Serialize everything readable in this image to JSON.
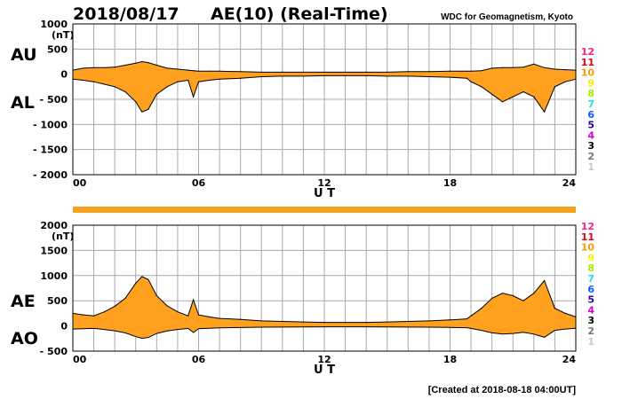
{
  "header": {
    "date": "2018/08/17",
    "title": "AE(10) (Real-Time)",
    "source": "WDC for Geomagnetism, Kyoto"
  },
  "footer": {
    "created": "[Created at 2018-08-18 04:00UT]"
  },
  "colors": {
    "fill": "#ffa01e",
    "line": "#000000",
    "grid": "#aaaaaa",
    "bar": "#f7a21e"
  },
  "station_counts": [
    {
      "label": "12",
      "color": "#ff1f80"
    },
    {
      "label": "11",
      "color": "#e0001b"
    },
    {
      "label": "10",
      "color": "#ff9a00"
    },
    {
      "label": "9",
      "color": "#f7ef00"
    },
    {
      "label": "8",
      "color": "#9ef000"
    },
    {
      "label": "7",
      "color": "#1fe0f0"
    },
    {
      "label": "6",
      "color": "#0a5cff"
    },
    {
      "label": "5",
      "color": "#2a00b0"
    },
    {
      "label": "4",
      "color": "#d000d8"
    },
    {
      "label": "3",
      "color": "#000000"
    },
    {
      "label": "2",
      "color": "#777777"
    },
    {
      "label": "1",
      "color": "#c8c8c8"
    }
  ],
  "chart_data": [
    {
      "type": "area",
      "name": "AU/AL",
      "unit": "(nT)",
      "upper_label": "AU",
      "lower_label": "AL",
      "xlabel": "U T",
      "xlim": [
        0,
        24
      ],
      "x_ticks": [
        "00",
        "06",
        "12",
        "18",
        "24"
      ],
      "ylim": [
        -2000,
        1000
      ],
      "y_ticks": [
        "1000",
        "500",
        "0",
        "- 500",
        "- 1000",
        "- 1500",
        "- 2000"
      ],
      "grid": true,
      "x": [
        0,
        0.5,
        1,
        1.5,
        2,
        2.5,
        3,
        3.3,
        3.6,
        4,
        4.5,
        5,
        5.5,
        5.75,
        6,
        6.5,
        7,
        8,
        9,
        10,
        11,
        12,
        13,
        14,
        15,
        16,
        17,
        18,
        18.8,
        19,
        19.5,
        20,
        20.5,
        21,
        21.5,
        22,
        22.5,
        23,
        23.5,
        24
      ],
      "upper": [
        80,
        120,
        130,
        130,
        140,
        180,
        220,
        250,
        230,
        180,
        120,
        100,
        80,
        70,
        60,
        60,
        60,
        50,
        40,
        40,
        40,
        40,
        40,
        40,
        40,
        50,
        50,
        60,
        60,
        60,
        70,
        120,
        130,
        130,
        140,
        200,
        130,
        100,
        90,
        80
      ],
      "lower": [
        -100,
        -120,
        -150,
        -200,
        -250,
        -350,
        -550,
        -750,
        -700,
        -400,
        -250,
        -150,
        -120,
        -450,
        -150,
        -120,
        -100,
        -80,
        -50,
        -40,
        -40,
        -30,
        -30,
        -30,
        -40,
        -40,
        -50,
        -60,
        -80,
        -150,
        -250,
        -400,
        -550,
        -450,
        -350,
        -450,
        -750,
        -250,
        -150,
        -100
      ]
    },
    {
      "type": "area",
      "name": "AE/AO",
      "unit": "(nT)",
      "upper_label": "AE",
      "lower_label": "AO",
      "xlabel": "U T",
      "xlim": [
        0,
        24
      ],
      "x_ticks": [
        "00",
        "06",
        "12",
        "18",
        "24"
      ],
      "ylim": [
        -500,
        2000
      ],
      "y_ticks": [
        "2000",
        "1500",
        "1000",
        "500",
        "0",
        "- 500"
      ],
      "grid": true,
      "x": [
        0,
        0.5,
        1,
        1.5,
        2,
        2.5,
        3,
        3.3,
        3.6,
        4,
        4.5,
        5,
        5.5,
        5.75,
        6,
        6.5,
        7,
        8,
        9,
        10,
        11,
        12,
        13,
        14,
        15,
        16,
        17,
        18,
        18.8,
        19,
        19.5,
        20,
        20.5,
        21,
        21.5,
        22,
        22.5,
        23,
        23.5,
        24
      ],
      "upper": [
        250,
        220,
        200,
        280,
        390,
        550,
        850,
        980,
        920,
        600,
        400,
        280,
        200,
        520,
        220,
        180,
        150,
        130,
        100,
        90,
        80,
        70,
        70,
        70,
        80,
        90,
        100,
        120,
        140,
        200,
        350,
        550,
        650,
        600,
        500,
        650,
        900,
        350,
        250,
        180
      ]
    }
  ]
}
